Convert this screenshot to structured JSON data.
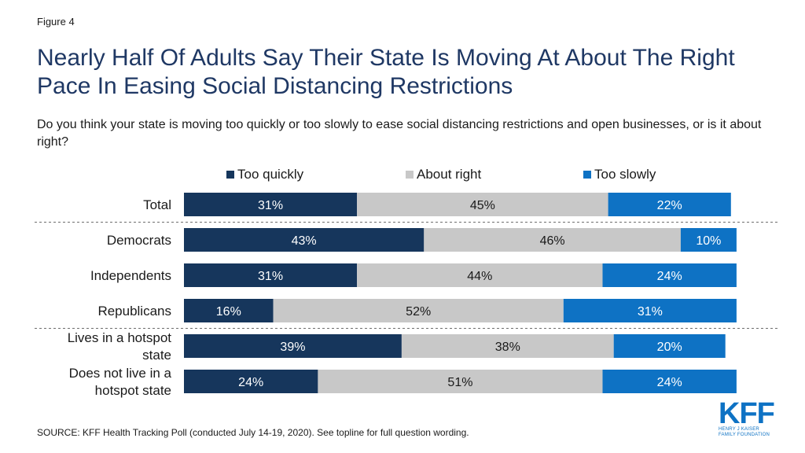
{
  "figure_label": "Figure 4",
  "title": "Nearly Half Of Adults Say Their State Is Moving At About The Right Pace In Easing Social Distancing Restrictions",
  "subtitle": "Do you think your state is moving too quickly or too slowly to ease social distancing restrictions and open businesses, or is it about right?",
  "source": "SOURCE: KFF Health Tracking Poll (conducted July 14-19, 2020). See topline for full question wording.",
  "logo": {
    "main": "KFF",
    "line1": "HENRY J KAISER",
    "line2": "FAMILY FOUNDATION"
  },
  "colors": {
    "too_quickly": "#16365c",
    "about_right": "#c8c8c8",
    "too_slowly": "#0e72c4"
  },
  "chart_data": {
    "type": "bar",
    "orientation": "horizontal",
    "stacked": true,
    "legend_position": "top",
    "categories": [
      "Total",
      "Democrats",
      "Independents",
      "Republicans",
      "Lives in a hotspot state",
      "Does not live in a hotspot state"
    ],
    "category_lines": [
      [
        "Total"
      ],
      [
        "Democrats"
      ],
      [
        "Independents"
      ],
      [
        "Republicans"
      ],
      [
        "Lives in a hotspot",
        "state"
      ],
      [
        "Does not live in a",
        "hotspot state"
      ]
    ],
    "series": [
      {
        "name": "Too quickly",
        "values": [
          31,
          43,
          31,
          16,
          39,
          24
        ],
        "labels": [
          "31%",
          "43%",
          "31%",
          "16%",
          "39%",
          "24%"
        ]
      },
      {
        "name": "About right",
        "values": [
          45,
          46,
          44,
          52,
          38,
          51
        ],
        "labels": [
          "45%",
          "46%",
          "44%",
          "52%",
          "38%",
          "51%"
        ]
      },
      {
        "name": "Too slowly",
        "values": [
          22,
          10,
          24,
          31,
          20,
          24
        ],
        "labels": [
          "22%",
          "10%",
          "24%",
          "31%",
          "20%",
          "24%"
        ]
      }
    ],
    "xlim": [
      0,
      100
    ],
    "grid": false,
    "group_separators_after": [
      "Total",
      "Republicans"
    ]
  }
}
